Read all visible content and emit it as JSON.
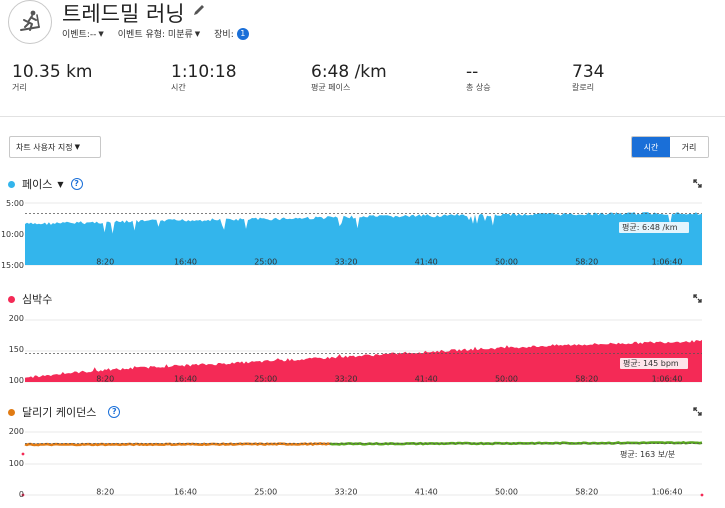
{
  "header": {
    "title": "트레드밀 러닝",
    "meta": {
      "event": "이벤트:--",
      "event_type": "이벤트 유형: 미분류",
      "gear_label": "장비:",
      "gear_count": "1"
    }
  },
  "stats": [
    {
      "value": "10.35 km",
      "label": "거리"
    },
    {
      "value": "1:10:18",
      "label": "시간"
    },
    {
      "value": "6:48 /km",
      "label": "평균 페이스"
    },
    {
      "value": "--",
      "label": "총 상승"
    },
    {
      "value": "734",
      "label": "칼로리"
    }
  ],
  "controls": {
    "view_select": "차트 사용자 지정",
    "toggle_time": "시간",
    "toggle_distance": "거리"
  },
  "colors": {
    "pace": "#33b5ec",
    "heart_rate": "#f42a56",
    "cadence_orange": "#e07b14",
    "cadence_green": "#58a61e",
    "accent": "#1a6fd8"
  },
  "x_ticks": [
    "8:20",
    "16:40",
    "25:00",
    "33:20",
    "41:40",
    "50:00",
    "58:20",
    "1:06:40"
  ],
  "chart_data": [
    {
      "type": "area",
      "name": "pace",
      "title": "페이스",
      "y_ticks": [
        "5:00",
        "10:00",
        "15:00"
      ],
      "y_inverted": true,
      "ylim": [
        5,
        15
      ],
      "average_label": "평균: 6:48 /km",
      "average": 6.8,
      "x_max_seconds": 4218,
      "points": [
        [
          0,
          8.5
        ],
        [
          500,
          8.2
        ],
        [
          1000,
          7.9
        ],
        [
          1500,
          7.7
        ],
        [
          2000,
          7.4
        ],
        [
          2500,
          7.2
        ],
        [
          3000,
          7.0
        ],
        [
          3500,
          6.9
        ],
        [
          4000,
          6.8
        ],
        [
          4218,
          6.8
        ]
      ]
    },
    {
      "type": "area",
      "name": "heart_rate",
      "title": "심박수",
      "y_ticks": [
        "200",
        "150",
        "100"
      ],
      "ylim": [
        100,
        200
      ],
      "average_label": "평균: 145 bpm",
      "average": 145,
      "x_max_seconds": 4218,
      "points": [
        [
          0,
          107
        ],
        [
          300,
          115
        ],
        [
          800,
          124
        ],
        [
          1300,
          130
        ],
        [
          1800,
          137
        ],
        [
          2300,
          145
        ],
        [
          2800,
          152
        ],
        [
          3300,
          158
        ],
        [
          3800,
          162
        ],
        [
          4218,
          165
        ]
      ]
    },
    {
      "type": "line",
      "name": "cadence",
      "title": "달리기 케이던스",
      "y_ticks": [
        "200",
        "100",
        "0"
      ],
      "ylim": [
        0,
        200
      ],
      "average_label": "평균: 163 보/분",
      "average": 163,
      "x_max_seconds": 4218,
      "segments": [
        {
          "color": "orange",
          "points": [
            [
              0,
              160
            ],
            [
              1000,
              161
            ],
            [
              1900,
              162
            ]
          ]
        },
        {
          "color": "green",
          "points": [
            [
              1900,
              162
            ],
            [
              3000,
              164
            ],
            [
              4218,
              166
            ]
          ]
        }
      ]
    }
  ]
}
